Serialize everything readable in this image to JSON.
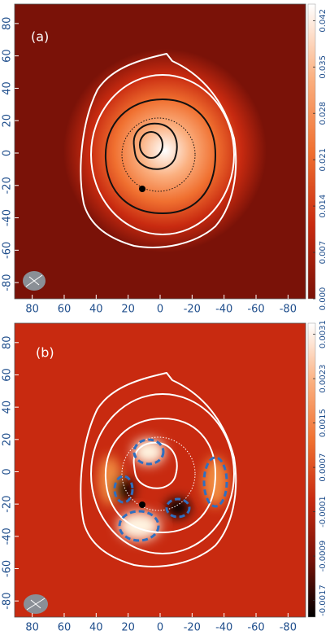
{
  "chart_data": [
    {
      "type": "image",
      "title": "(a)",
      "xlim": [
        91,
        -91
      ],
      "ylim": [
        -90,
        92
      ],
      "xticks": [
        80,
        60,
        40,
        20,
        0,
        -20,
        -40,
        -60,
        -80
      ],
      "yticks": [
        80,
        60,
        40,
        20,
        0,
        -20,
        -40,
        -60,
        -80
      ],
      "colorbar_lim": [
        0,
        0.0445
      ],
      "colorbar_ticks": [
        {
          "value": 0,
          "label": "0.000"
        },
        0.007,
        0.014,
        0.021,
        0.028,
        0.035,
        0.042
      ],
      "colormap": [
        "#7a1208",
        "#c82a10",
        "#f07030",
        "#fbb080",
        "#ffffff"
      ]
    },
    {
      "type": "image",
      "title": "(b)",
      "xlim": [
        91,
        -91
      ],
      "ylim": [
        -90,
        92
      ],
      "xticks": [
        80,
        60,
        40,
        20,
        0,
        -20,
        -40,
        -60,
        -80
      ],
      "yticks": [
        80,
        60,
        40,
        20,
        0,
        -20,
        -40,
        -60,
        -80
      ],
      "colorbar_lim": [
        -0.002,
        0.0033
      ],
      "colorbar_ticks": [
        -0.0017,
        -0.0009,
        -0.0001,
        0.0007,
        0.0015,
        0.0023,
        0.0031
      ],
      "colormap": [
        "#000000",
        "#7a1208",
        "#c82a10",
        "#f07030",
        "#fbb080",
        "#ffffff"
      ]
    }
  ]
}
